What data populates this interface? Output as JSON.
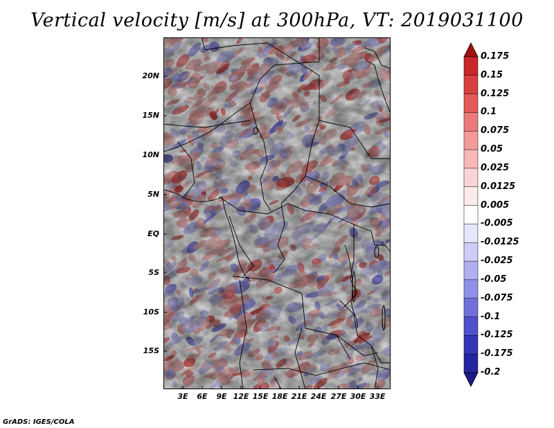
{
  "title": "Vertical velocity [m/s] at 300hPa, VT: 2019031100",
  "credit": "GrADS: IGES/COLA",
  "lat_labels": [
    "20N",
    "15N",
    "10N",
    "5N",
    "EQ",
    "5S",
    "10S",
    "15S"
  ],
  "lon_labels": [
    "3E",
    "6E",
    "9E",
    "12E",
    "15E",
    "18E",
    "21E",
    "24E",
    "27E",
    "30E",
    "33E"
  ],
  "colorbar": {
    "levels": [
      "0.175",
      "0.15",
      "0.125",
      "0.1",
      "0.075",
      "0.05",
      "0.025",
      "0.0125",
      "0.005",
      "-0.005",
      "-0.0125",
      "-0.025",
      "-0.05",
      "-0.075",
      "-0.1",
      "-0.125",
      "-0.175",
      "-0.2"
    ],
    "colors": [
      "#b01818",
      "#c82828",
      "#d84040",
      "#e45a5a",
      "#ec7a7a",
      "#f29a9a",
      "#f6b8b8",
      "#fad4d4",
      "#fdeaea",
      "#ffffff",
      "#e6e6fb",
      "#cdcdf6",
      "#b0b0f0",
      "#9090e8",
      "#7070dc",
      "#5050cc",
      "#3535b8",
      "#2424a0",
      "#1a1a8a"
    ],
    "top_color": "#a01010",
    "bottom_color": "#1a1a8a"
  },
  "field_colors": {
    "up": [
      "#f2b0b0",
      "#ea8a8a",
      "#e06060",
      "#d04040"
    ],
    "down": [
      "#c8c8f4",
      "#a8a8ee",
      "#8888e4",
      "#6a6ad8"
    ]
  },
  "border_color": "#000000"
}
